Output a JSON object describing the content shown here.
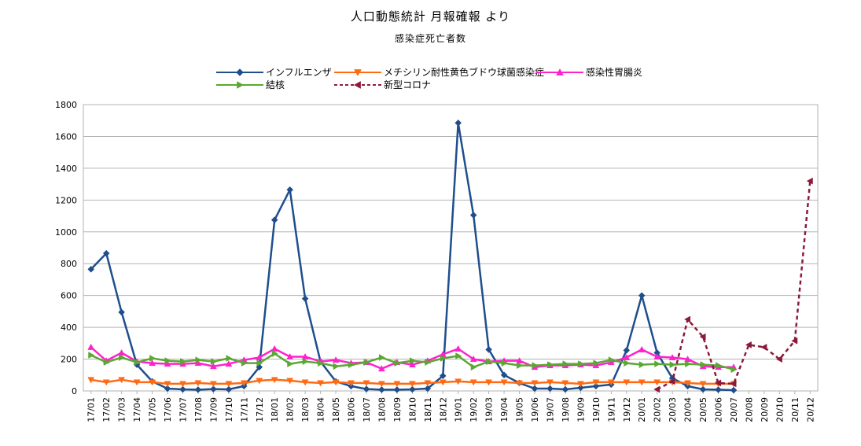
{
  "chart_data": {
    "type": "line",
    "title": "人口動態統計 月報確報 より",
    "subtitle": "感染症死亡者数",
    "xlabel": "",
    "ylabel": "",
    "ylim": [
      0,
      1800
    ],
    "yticks": [
      0,
      200,
      400,
      600,
      800,
      1000,
      1200,
      1400,
      1600,
      1800
    ],
    "grid": true,
    "legend_position": "top",
    "categories": [
      "17/01",
      "17/02",
      "17/03",
      "17/04",
      "17/05",
      "17/06",
      "17/07",
      "17/08",
      "17/09",
      "17/10",
      "17/11",
      "17/12",
      "18/01",
      "18/02",
      "18/03",
      "18/04",
      "18/05",
      "18/06",
      "18/07",
      "18/08",
      "18/09",
      "18/10",
      "18/11",
      "18/12",
      "19/01",
      "19/02",
      "19/03",
      "19/04",
      "19/05",
      "19/06",
      "19/07",
      "19/08",
      "19/09",
      "19/10",
      "19/11",
      "19/12",
      "20/01",
      "20/02",
      "20/03",
      "20/04",
      "20/05",
      "20/06",
      "20/07",
      "20/08",
      "20/09",
      "20/10",
      "20/11",
      "20/12"
    ],
    "series": [
      {
        "name": "インフルエンザ",
        "color": "#1f4e8c",
        "marker": "diamond",
        "dash": false,
        "values": [
          765,
          865,
          495,
          165,
          60,
          15,
          10,
          8,
          12,
          10,
          30,
          150,
          1075,
          1265,
          580,
          185,
          60,
          30,
          12,
          8,
          8,
          10,
          15,
          95,
          1685,
          1105,
          260,
          100,
          50,
          15,
          15,
          10,
          20,
          30,
          40,
          255,
          600,
          240,
          80,
          30,
          10,
          8,
          5,
          null,
          null,
          null,
          null,
          null
        ]
      },
      {
        "name": "メチシリン耐性黄色ブドウ球菌感染症",
        "color": "#ff6a13",
        "marker": "triangle-down",
        "dash": false,
        "values": [
          70,
          55,
          70,
          55,
          55,
          45,
          45,
          50,
          45,
          45,
          50,
          65,
          70,
          65,
          55,
          50,
          55,
          50,
          50,
          45,
          45,
          45,
          50,
          55,
          60,
          55,
          55,
          55,
          50,
          50,
          55,
          50,
          45,
          55,
          55,
          55,
          55,
          55,
          55,
          50,
          45,
          45,
          45,
          null,
          null,
          null,
          null,
          null
        ]
      },
      {
        "name": "感染性胃腸炎",
        "color": "#ff22cc",
        "marker": "triangle-up",
        "dash": false,
        "values": [
          275,
          190,
          240,
          185,
          175,
          170,
          170,
          175,
          155,
          170,
          195,
          210,
          265,
          215,
          215,
          185,
          195,
          175,
          180,
          140,
          180,
          165,
          190,
          230,
          265,
          200,
          185,
          190,
          190,
          150,
          160,
          160,
          165,
          160,
          180,
          210,
          260,
          215,
          210,
          200,
          155,
          150,
          150,
          null,
          null,
          null,
          null,
          null
        ]
      },
      {
        "name": "結核",
        "color": "#5aa832",
        "marker": "triangle-right",
        "dash": false,
        "values": [
          225,
          180,
          210,
          180,
          205,
          190,
          185,
          195,
          185,
          205,
          175,
          175,
          235,
          170,
          185,
          175,
          155,
          165,
          180,
          210,
          175,
          190,
          180,
          205,
          220,
          150,
          185,
          175,
          160,
          160,
          165,
          170,
          170,
          175,
          195,
          175,
          165,
          170,
          165,
          170,
          165,
          160,
          135,
          null,
          null,
          null,
          null,
          null
        ]
      },
      {
        "name": "新型コロナ",
        "color": "#8b1a3a",
        "marker": "triangle-left",
        "dash": true,
        "values": [
          null,
          null,
          null,
          null,
          null,
          null,
          null,
          null,
          null,
          null,
          null,
          null,
          null,
          null,
          null,
          null,
          null,
          null,
          null,
          null,
          null,
          null,
          null,
          null,
          null,
          null,
          null,
          null,
          null,
          null,
          null,
          null,
          null,
          null,
          null,
          null,
          null,
          10,
          60,
          450,
          340,
          50,
          45,
          290,
          275,
          200,
          315,
          1320
        ]
      }
    ]
  }
}
